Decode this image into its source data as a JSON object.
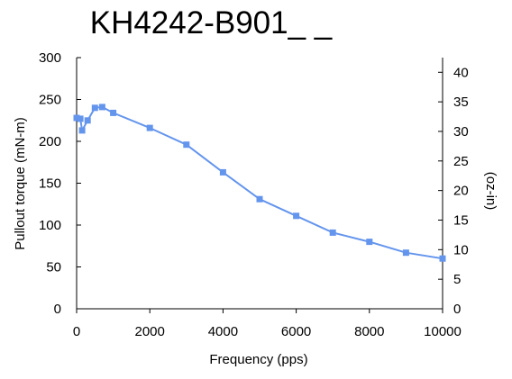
{
  "chart_data": {
    "type": "line",
    "title": "KH4242-B901_ _",
    "xlabel": "Frequency (pps)",
    "ylabel": "Pullout torque (mN-m)",
    "y2label": "(oz-in)",
    "xlim": [
      0,
      10000
    ],
    "ylim": [
      0,
      300
    ],
    "y2lim": [
      0,
      42.48
    ],
    "xticks": [
      0,
      2000,
      4000,
      6000,
      8000,
      10000
    ],
    "yticks": [
      0,
      50,
      100,
      150,
      200,
      250,
      300
    ],
    "y2ticks": [
      0,
      5,
      10,
      15,
      20,
      25,
      30,
      35,
      40
    ],
    "grid": false,
    "series": [
      {
        "color": "#6495ED",
        "marker": "square",
        "points": [
          {
            "x": 0,
            "y": 228
          },
          {
            "x": 100,
            "y": 227
          },
          {
            "x": 150,
            "y": 213
          },
          {
            "x": 300,
            "y": 225
          },
          {
            "x": 500,
            "y": 240
          },
          {
            "x": 700,
            "y": 241
          },
          {
            "x": 1000,
            "y": 234
          },
          {
            "x": 2000,
            "y": 216
          },
          {
            "x": 3000,
            "y": 196
          },
          {
            "x": 4000,
            "y": 163
          },
          {
            "x": 5000,
            "y": 131
          },
          {
            "x": 6000,
            "y": 111
          },
          {
            "x": 7000,
            "y": 91
          },
          {
            "x": 8000,
            "y": 80
          },
          {
            "x": 9000,
            "y": 67
          },
          {
            "x": 10000,
            "y": 60
          }
        ]
      }
    ]
  }
}
